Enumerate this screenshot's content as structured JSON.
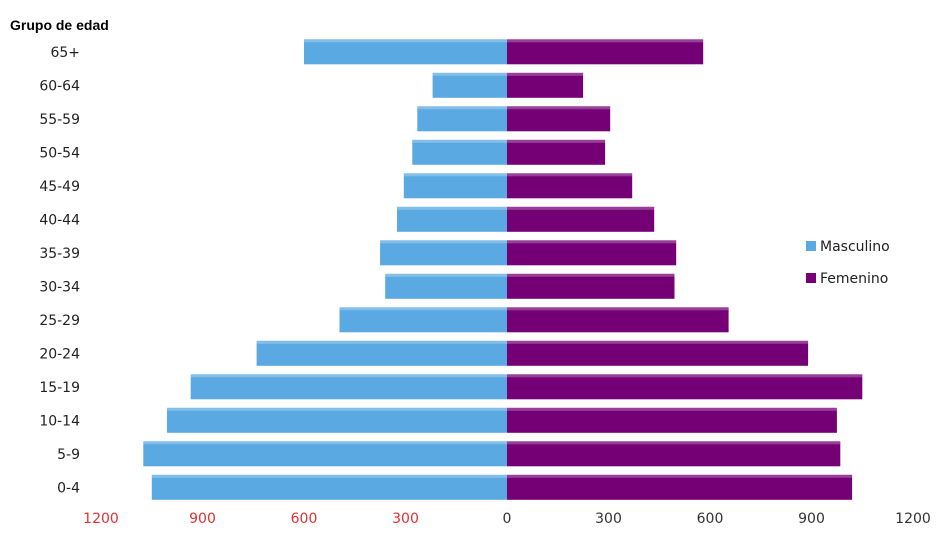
{
  "chart_data": {
    "type": "bar",
    "orientation": "horizontal",
    "layout": "population-pyramid",
    "y_title": "Grupo de edad",
    "categories": [
      "65+",
      "60-64",
      "55-59",
      "50-54",
      "45-49",
      "40-44",
      "35-39",
      "30-34",
      "25-29",
      "20-24",
      "15-19",
      "10-14",
      "5-9",
      "0-4"
    ],
    "series": [
      {
        "name": "Masculino",
        "color": "#5aa9e2",
        "side": "left",
        "values": [
          600,
          220,
          265,
          280,
          305,
          325,
          375,
          360,
          495,
          740,
          935,
          1005,
          1075,
          1050
        ]
      },
      {
        "name": "Femenino",
        "color": "#750076",
        "side": "right",
        "values": [
          580,
          225,
          305,
          290,
          370,
          435,
          500,
          495,
          655,
          890,
          1050,
          975,
          985,
          1020
        ]
      }
    ],
    "xlim": [
      -1200,
      1200
    ],
    "x_ticks": [
      {
        "value": -1200,
        "label": "1200",
        "color": "#e03030"
      },
      {
        "value": -900,
        "label": "900",
        "color": "#e03030"
      },
      {
        "value": -600,
        "label": "600",
        "color": "#e03030"
      },
      {
        "value": -300,
        "label": "300",
        "color": "#e03030"
      },
      {
        "value": 0,
        "label": "0",
        "color": "#333333"
      },
      {
        "value": 300,
        "label": "300",
        "color": "#333333"
      },
      {
        "value": 600,
        "label": "600",
        "color": "#333333"
      },
      {
        "value": 900,
        "label": "900",
        "color": "#333333"
      },
      {
        "value": 1200,
        "label": "1200",
        "color": "#333333"
      }
    ],
    "legend": {
      "position": "right",
      "items": [
        "Masculino",
        "Femenino"
      ]
    },
    "grid": false
  }
}
